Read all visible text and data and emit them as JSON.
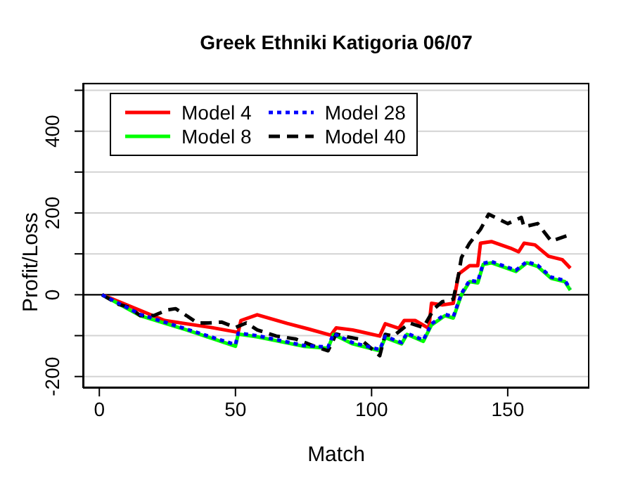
{
  "chart_data": {
    "type": "line",
    "title": "Greek Ethniki Katigoria 06/07",
    "xlabel": "Match",
    "ylabel": "Profit/Loss",
    "xlim": [
      -6,
      180
    ],
    "xticks": [
      0,
      50,
      100,
      150
    ],
    "ylim": [
      -228,
      518
    ],
    "yticks": [
      -200,
      {
        "value": -100,
        "label": null
      },
      0,
      {
        "value": 100,
        "label": null
      },
      200,
      {
        "value": 300,
        "label": null
      },
      400,
      {
        "value": 500,
        "label": null
      }
    ],
    "grid": "y",
    "legend": "top left",
    "ref_lines": [
      {
        "axis": "y",
        "value": 0,
        "color": "#000000"
      }
    ],
    "series": [
      {
        "name": "Model 4",
        "color": "#ff0000",
        "line_style": "solid",
        "x": [
          1,
          24,
          41,
          51,
          52,
          58,
          69,
          77,
          85,
          87,
          93,
          103,
          105,
          110,
          112,
          116,
          121,
          122,
          126,
          130,
          132,
          136,
          139,
          140,
          144,
          151,
          154,
          156,
          160,
          165,
          170,
          173
        ],
        "values": [
          0,
          -63,
          -80,
          -92,
          -63,
          -49,
          -70,
          -84,
          -99,
          -81,
          -86,
          -101,
          -71,
          -82,
          -63,
          -63,
          -82,
          -21,
          -25,
          -21,
          51,
          71,
          71,
          126,
          130,
          114,
          105,
          126,
          122,
          94,
          86,
          65
        ]
      },
      {
        "name": "Model 8",
        "color": "#00ff00",
        "line_style": "solid",
        "x": [
          1,
          15,
          32,
          50,
          51,
          58,
          75,
          84,
          86,
          93,
          103,
          105,
          111,
          113,
          119,
          122,
          127,
          130,
          133,
          136,
          139,
          141,
          144,
          153,
          157,
          161,
          166,
          171,
          173
        ],
        "values": [
          0,
          -51,
          -86,
          -126,
          -96,
          -103,
          -126,
          -131,
          -97,
          -120,
          -137,
          -105,
          -120,
          -97,
          -114,
          -74,
          -51,
          -57,
          0,
          32,
          29,
          74,
          78,
          57,
          78,
          69,
          40,
          32,
          11
        ]
      },
      {
        "name": "Model 28",
        "color": "#0000ff",
        "line_style": "dotted",
        "x": [
          1,
          15,
          32,
          50,
          51,
          58,
          75,
          84,
          86,
          93,
          103,
          105,
          111,
          113,
          119,
          122,
          127,
          130,
          133,
          136,
          139,
          141,
          144,
          153,
          157,
          161,
          166,
          171,
          173
        ],
        "values": [
          0,
          -48,
          -84,
          -122,
          -94,
          -100,
          -124,
          -128,
          -95,
          -117,
          -134,
          -102,
          -117,
          -94,
          -111,
          -71,
          -48,
          -54,
          3,
          35,
          32,
          77,
          81,
          60,
          81,
          72,
          43,
          35,
          14
        ]
      },
      {
        "name": "Model 40",
        "color": "#000000",
        "line_style": "dashed",
        "x": [
          1,
          7,
          11,
          15,
          20,
          25,
          28,
          32,
          36,
          40,
          45,
          50,
          54,
          58,
          65,
          72,
          79,
          84,
          87,
          91,
          96,
          103,
          105,
          108,
          114,
          119,
          123,
          126,
          130,
          132,
          133,
          136,
          140,
          143,
          150,
          155,
          156,
          161,
          166,
          172
        ],
        "values": [
          0,
          -23,
          -31,
          -51,
          -51,
          -37,
          -34,
          -51,
          -69,
          -69,
          -67,
          -80,
          -69,
          -86,
          -101,
          -108,
          -126,
          -137,
          -96,
          -103,
          -109,
          -149,
          -97,
          -101,
          -69,
          -80,
          -34,
          -17,
          -11,
          51,
          91,
          126,
          160,
          197,
          174,
          189,
          166,
          174,
          131,
          145
        ]
      }
    ]
  }
}
